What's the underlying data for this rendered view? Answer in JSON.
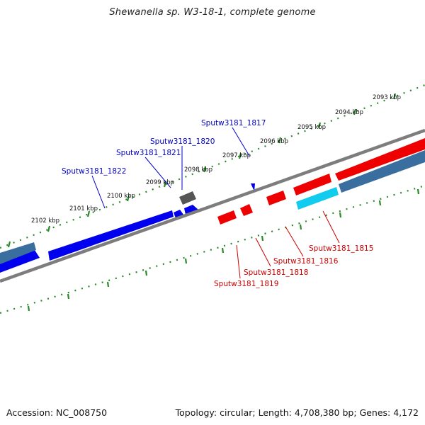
{
  "title": "Shewanella sp. W3-18-1, complete genome",
  "footer": {
    "accession": "Accession: NC_008750",
    "topology": "Topology: circular; Length: 4,708,380 bp; Genes: 4,172"
  },
  "colors": {
    "forward_cds": "#0000ee",
    "reverse_cds": "#ee0000",
    "other_feature": "#555555",
    "steel_track": "#3a6e9e",
    "cyan_track": "#11ccee",
    "backbone": "#7d7d7d",
    "tick_green": "#2a8a2a"
  },
  "scale_labels": [
    "2093 kbp",
    "2094 kbp",
    "2095 kbp",
    "2096 kbp",
    "2097 kbp",
    "2098 kbp",
    "2099 kbp",
    "2100 kbp",
    "2101 kbp",
    "2102 kbp"
  ],
  "gene_labels": {
    "blue": [
      "Sputw3181_1817",
      "Sputw3181_1820",
      "Sputw3181_1821",
      "Sputw3181_1822"
    ],
    "red": [
      "Sputw3181_1815",
      "Sputw3181_1816",
      "Sputw3181_1818",
      "Sputw3181_1819"
    ]
  }
}
